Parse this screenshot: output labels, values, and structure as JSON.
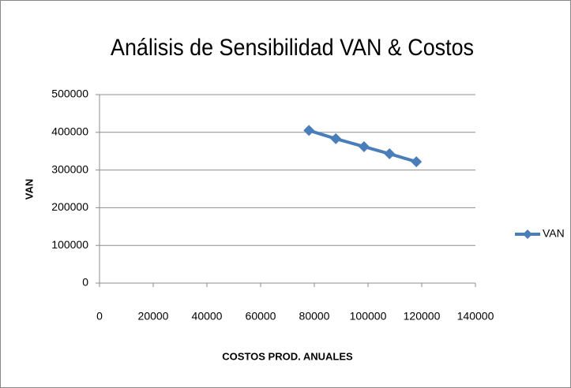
{
  "chart_data": {
    "type": "line",
    "title": "Análisis de Sensibilidad VAN & Costos",
    "x_label": "COSTOS PROD. ANUALES",
    "y_label": "VAN",
    "x": [
      78000,
      88000,
      98500,
      108000,
      118000
    ],
    "series": [
      {
        "name": "VAN",
        "color": "#4a7ebb",
        "values": [
          405000,
          383000,
          362000,
          343000,
          322000
        ]
      }
    ],
    "xlim": [
      0,
      140000
    ],
    "xticks": [
      0,
      20000,
      40000,
      60000,
      80000,
      100000,
      120000,
      140000
    ],
    "ylim": [
      0,
      500000
    ],
    "yticks": [
      0,
      100000,
      200000,
      300000,
      400000,
      500000
    ],
    "grid": true,
    "legend": "right",
    "markers": "diamond"
  }
}
